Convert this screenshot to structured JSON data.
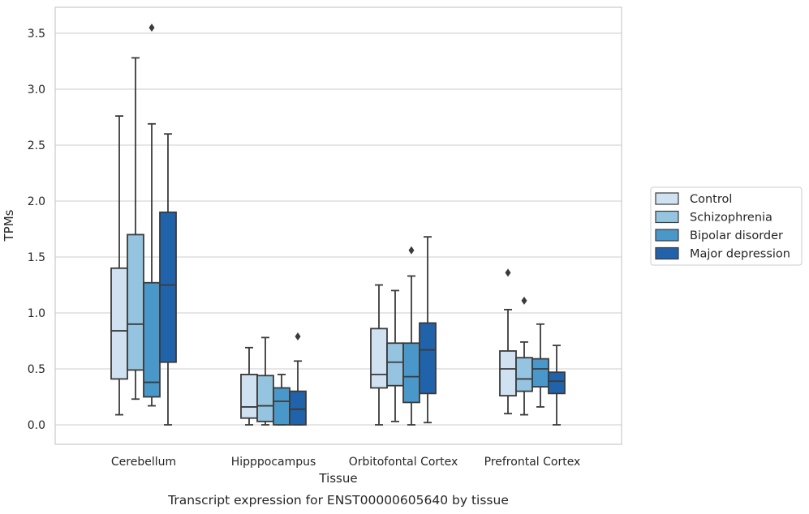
{
  "caption": "Transcript expression for ENST00000605640 by tissue",
  "chart_data": {
    "type": "box",
    "xlabel": "Tissue",
    "ylabel": "TPMs",
    "ylim": [
      -0.17,
      3.75
    ],
    "yticks": [
      "0.0",
      "0.5",
      "1.0",
      "1.5",
      "2.0",
      "2.5",
      "3.0",
      "3.5"
    ],
    "grid": "horizontal",
    "legend_position": "right",
    "categories": [
      "Cerebellum",
      "Hipppocampus",
      "Orbitofontal Cortex",
      "Prefrontal Cortex"
    ],
    "series": [
      {
        "name": "Control",
        "color": "#d0e1f2",
        "boxes": [
          {
            "whislo": 0.09,
            "q1": 0.41,
            "med": 0.84,
            "q3": 1.4,
            "whishi": 2.76,
            "fliers": []
          },
          {
            "whislo": 0.0,
            "q1": 0.06,
            "med": 0.16,
            "q3": 0.45,
            "whishi": 0.69,
            "fliers": []
          },
          {
            "whislo": 0.0,
            "q1": 0.33,
            "med": 0.45,
            "q3": 0.86,
            "whishi": 1.25,
            "fliers": []
          },
          {
            "whislo": 0.1,
            "q1": 0.26,
            "med": 0.5,
            "q3": 0.66,
            "whishi": 1.03,
            "fliers": [
              1.36
            ]
          }
        ]
      },
      {
        "name": "Schizophrenia",
        "color": "#94c4df",
        "boxes": [
          {
            "whislo": 0.23,
            "q1": 0.49,
            "med": 0.9,
            "q3": 1.7,
            "whishi": 3.28,
            "fliers": []
          },
          {
            "whislo": 0.0,
            "q1": 0.03,
            "med": 0.17,
            "q3": 0.44,
            "whishi": 0.78,
            "fliers": []
          },
          {
            "whislo": 0.03,
            "q1": 0.35,
            "med": 0.56,
            "q3": 0.73,
            "whishi": 1.2,
            "fliers": []
          },
          {
            "whislo": 0.09,
            "q1": 0.3,
            "med": 0.41,
            "q3": 0.6,
            "whishi": 0.74,
            "fliers": [
              1.11
            ]
          }
        ]
      },
      {
        "name": "Bipolar disorder",
        "color": "#4a98c9",
        "boxes": [
          {
            "whislo": 0.17,
            "q1": 0.25,
            "med": 0.38,
            "q3": 1.27,
            "whishi": 2.69,
            "fliers": [
              3.55
            ]
          },
          {
            "whislo": 0.0,
            "q1": 0.0,
            "med": 0.21,
            "q3": 0.33,
            "whishi": 0.45,
            "fliers": []
          },
          {
            "whislo": 0.0,
            "q1": 0.2,
            "med": 0.43,
            "q3": 0.73,
            "whishi": 1.33,
            "fliers": [
              1.56
            ]
          },
          {
            "whislo": 0.16,
            "q1": 0.34,
            "med": 0.5,
            "q3": 0.59,
            "whishi": 0.9,
            "fliers": []
          }
        ]
      },
      {
        "name": "Major depression",
        "color": "#2163aa",
        "boxes": [
          {
            "whislo": 0.0,
            "q1": 0.56,
            "med": 1.25,
            "q3": 1.9,
            "whishi": 2.6,
            "fliers": []
          },
          {
            "whislo": 0.0,
            "q1": 0.0,
            "med": 0.14,
            "q3": 0.3,
            "whishi": 0.57,
            "fliers": [
              0.79
            ]
          },
          {
            "whislo": 0.02,
            "q1": 0.28,
            "med": 0.67,
            "q3": 0.91,
            "whishi": 1.68,
            "fliers": []
          },
          {
            "whislo": 0.0,
            "q1": 0.28,
            "med": 0.39,
            "q3": 0.47,
            "whishi": 0.71,
            "fliers": []
          }
        ]
      }
    ]
  }
}
